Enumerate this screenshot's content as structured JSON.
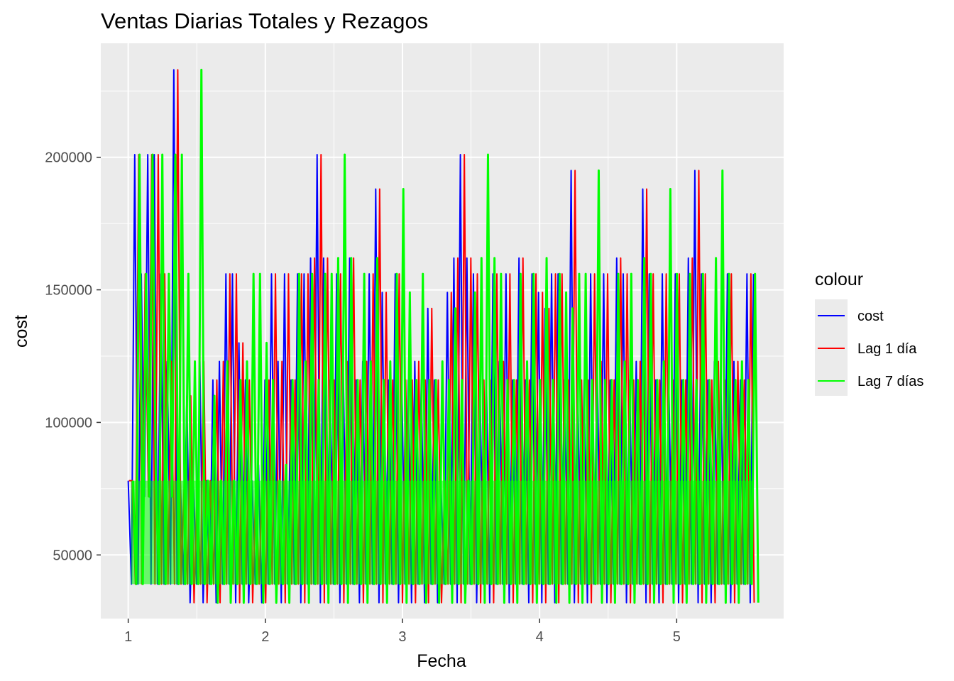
{
  "chart_data": {
    "type": "line",
    "title": "Ventas Diarias Totales y Rezagos",
    "xlabel": "Fecha",
    "ylabel": "cost",
    "x_ticks": [
      1,
      2,
      3,
      4,
      5
    ],
    "y_ticks": [
      50000,
      100000,
      150000,
      200000
    ],
    "xlim": [
      0.8,
      5.78
    ],
    "ylim": [
      26000,
      243000
    ],
    "grid": true,
    "legend": {
      "title": "colour",
      "position": "right",
      "entries": [
        {
          "name": "cost",
          "color": "#0000ff"
        },
        {
          "name": "Lag 1 día",
          "color": "#ff0000"
        },
        {
          "name": "Lag 7 días",
          "color": "#00ff00"
        }
      ]
    },
    "series": [
      {
        "name": "cost",
        "color": "#0000ff",
        "x_start": 1.0,
        "x_end": 5.56,
        "note_levels": [
          32000,
          39000,
          78000,
          116000,
          123000,
          156000,
          162000,
          188000,
          195000,
          201000,
          233000
        ],
        "values": [
          78000,
          39000,
          201000,
          39000,
          156000,
          72000,
          201000,
          39000,
          201000,
          39000,
          156000,
          39000,
          123000,
          39000,
          233000,
          39000,
          78000,
          39000,
          110000,
          32000,
          78000,
          39000,
          123000,
          32000,
          78000,
          39000,
          116000,
          32000,
          123000,
          39000,
          156000,
          39000,
          156000,
          32000,
          130000,
          39000,
          116000,
          32000,
          78000,
          39000,
          84000,
          32000,
          116000,
          39000,
          156000,
          39000,
          123000,
          32000,
          156000,
          39000,
          116000,
          39000,
          156000,
          32000,
          156000,
          39000,
          162000,
          39000,
          201000,
          32000,
          162000,
          39000,
          116000,
          39000,
          156000,
          32000,
          123000,
          39000,
          162000,
          39000,
          116000,
          32000,
          123000,
          39000,
          156000,
          39000,
          188000,
          32000,
          149000,
          39000,
          116000,
          39000,
          156000,
          32000,
          116000,
          39000,
          116000,
          32000,
          123000,
          39000,
          116000,
          32000,
          143000,
          39000,
          116000,
          32000,
          78000,
          39000,
          149000,
          39000,
          162000,
          32000,
          201000,
          39000,
          162000,
          39000,
          156000,
          32000,
          116000,
          39000,
          116000,
          32000,
          156000,
          39000,
          123000,
          39000,
          156000,
          32000,
          116000,
          39000,
          162000,
          39000,
          116000,
          32000,
          156000,
          39000,
          149000,
          32000,
          143000,
          39000,
          156000,
          32000,
          156000,
          39000,
          116000,
          39000,
          195000,
          32000,
          116000,
          39000,
          116000,
          32000,
          156000,
          39000,
          123000,
          39000,
          156000,
          32000,
          116000,
          39000,
          162000,
          39000,
          156000,
          32000,
          116000,
          39000,
          123000,
          39000,
          188000,
          32000,
          156000,
          39000,
          116000,
          32000,
          156000,
          39000,
          116000,
          39000,
          156000,
          32000,
          116000,
          39000,
          162000,
          39000,
          195000,
          32000,
          156000,
          39000,
          116000,
          32000,
          123000,
          39000,
          116000,
          39000,
          156000,
          32000,
          123000,
          39000,
          116000,
          39000,
          156000,
          32000,
          156000
        ]
      },
      {
        "name": "Lag 1 día",
        "color": "#ff0000",
        "x_start": 1.005,
        "x_end": 5.565,
        "note": "same values as cost shifted one day"
      },
      {
        "name": "Lag 7 días",
        "color": "#00ff00",
        "x_start": 1.035,
        "x_end": 5.595,
        "note": "same values as cost shifted seven days"
      }
    ]
  }
}
